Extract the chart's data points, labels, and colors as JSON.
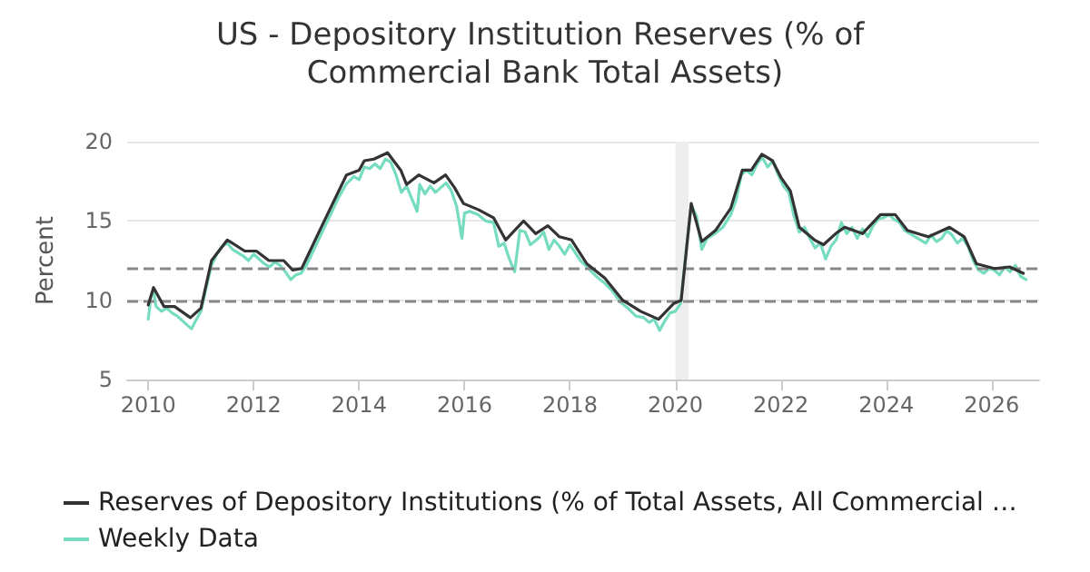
{
  "chart_data": {
    "type": "line",
    "title": "US - Depository Institution Reserves (% of Commercial Bank Total Assets)",
    "ylabel": "Percent",
    "xlim": [
      2009.6,
      2026.9
    ],
    "xticks": [
      2010,
      2012,
      2014,
      2016,
      2018,
      2020,
      2022,
      2024,
      2026
    ],
    "ylim": [
      5,
      20
    ],
    "yticks": [
      5,
      10,
      15,
      20
    ],
    "grid": "y",
    "legend": "bottom",
    "marker": "none",
    "ref_lines": [
      {
        "axis": "y",
        "value": 12,
        "color": "#888888",
        "line_style": "dashed"
      },
      {
        "axis": "y",
        "value": 10,
        "color": "#888888",
        "line_style": "dashed"
      }
    ],
    "bands": [
      {
        "axis": "x",
        "from": 2020.0,
        "to": 2020.25,
        "color": "#eeeeee"
      }
    ],
    "series": [
      {
        "name": "Reserves of Depository Institutions (% of Total Assets, All Commercial …",
        "color": "#333333",
        "x": [
          2010.0,
          2010.1,
          2010.3,
          2010.5,
          2010.8,
          2011.0,
          2011.2,
          2011.5,
          2011.83,
          2012.05,
          2012.29,
          2012.57,
          2012.74,
          2012.91,
          2013.31,
          2013.76,
          2014.0,
          2014.1,
          2014.28,
          2014.54,
          2014.79,
          2014.9,
          2015.13,
          2015.42,
          2015.64,
          2015.81,
          2015.98,
          2016.27,
          2016.55,
          2016.78,
          2017.12,
          2017.35,
          2017.58,
          2017.8,
          2018.03,
          2018.32,
          2018.66,
          2019.0,
          2019.34,
          2019.68,
          2019.97,
          2020.11,
          2020.3,
          2020.5,
          2020.76,
          2021.05,
          2021.27,
          2021.44,
          2021.64,
          2021.84,
          2022.01,
          2022.18,
          2022.35,
          2022.64,
          2022.81,
          2023.04,
          2023.21,
          2023.55,
          2023.89,
          2024.17,
          2024.4,
          2024.8,
          2025.2,
          2025.48,
          2025.71,
          2026.05,
          2026.34,
          2026.6
        ],
        "values": [
          9.7,
          10.8,
          9.6,
          9.6,
          8.9,
          9.5,
          12.5,
          13.8,
          13.1,
          13.1,
          12.5,
          12.5,
          11.9,
          12.0,
          14.8,
          17.9,
          18.2,
          18.8,
          18.9,
          19.3,
          18.2,
          17.3,
          17.9,
          17.4,
          17.9,
          17.1,
          16.1,
          15.7,
          15.2,
          13.8,
          15.0,
          14.2,
          14.7,
          14.0,
          13.8,
          12.3,
          11.4,
          10.0,
          9.3,
          8.8,
          9.8,
          10.0,
          16.1,
          13.7,
          14.4,
          15.8,
          18.2,
          18.2,
          19.2,
          18.8,
          17.7,
          16.9,
          14.6,
          13.8,
          13.5,
          14.2,
          14.6,
          14.2,
          15.4,
          15.4,
          14.4,
          14.0,
          14.6,
          14.0,
          12.3,
          12.0,
          12.1,
          11.7
        ]
      },
      {
        "name": "Weekly Data",
        "color": "#76dcc0",
        "x": [
          2010.0,
          2010.05,
          2010.1,
          2010.15,
          2010.25,
          2010.35,
          2010.45,
          2010.55,
          2010.65,
          2010.75,
          2010.82,
          2010.9,
          2011.0,
          2011.1,
          2011.2,
          2011.3,
          2011.4,
          2011.5,
          2011.6,
          2011.7,
          2011.8,
          2011.9,
          2012.0,
          2012.1,
          2012.2,
          2012.3,
          2012.4,
          2012.5,
          2012.6,
          2012.7,
          2012.8,
          2012.9,
          2013.0,
          2013.2,
          2013.4,
          2013.6,
          2013.75,
          2013.9,
          2014.0,
          2014.1,
          2014.2,
          2014.3,
          2014.4,
          2014.5,
          2014.6,
          2014.7,
          2014.8,
          2014.9,
          2015.0,
          2015.1,
          2015.15,
          2015.25,
          2015.35,
          2015.45,
          2015.55,
          2015.65,
          2015.75,
          2015.85,
          2015.95,
          2016.0,
          2016.1,
          2016.25,
          2016.4,
          2016.55,
          2016.65,
          2016.75,
          2016.85,
          2016.95,
          2017.05,
          2017.15,
          2017.25,
          2017.4,
          2017.5,
          2017.6,
          2017.7,
          2017.8,
          2017.9,
          2018.0,
          2018.1,
          2018.2,
          2018.35,
          2018.5,
          2018.65,
          2018.8,
          2018.95,
          2019.1,
          2019.25,
          2019.4,
          2019.5,
          2019.6,
          2019.7,
          2019.8,
          2019.9,
          2020.0,
          2020.1,
          2020.2,
          2020.3,
          2020.4,
          2020.5,
          2020.6,
          2020.75,
          2020.9,
          2021.05,
          2021.15,
          2021.25,
          2021.35,
          2021.45,
          2021.55,
          2021.65,
          2021.75,
          2021.85,
          2021.95,
          2022.05,
          2022.15,
          2022.25,
          2022.35,
          2022.45,
          2022.55,
          2022.65,
          2022.75,
          2022.85,
          2022.95,
          2023.05,
          2023.15,
          2023.25,
          2023.35,
          2023.45,
          2023.55,
          2023.65,
          2023.75,
          2023.85,
          2023.95,
          2024.05,
          2024.15,
          2024.25,
          2024.35,
          2024.45,
          2024.55,
          2024.65,
          2024.75,
          2024.85,
          2024.95,
          2025.05,
          2025.15,
          2025.25,
          2025.35,
          2025.45,
          2025.55,
          2025.65,
          2025.75,
          2025.85,
          2025.95,
          2026.05,
          2026.15,
          2026.25,
          2026.35,
          2026.45,
          2026.55,
          2026.65
        ],
        "values": [
          8.8,
          10.2,
          10.6,
          9.6,
          9.3,
          9.5,
          9.2,
          9.0,
          8.7,
          8.4,
          8.2,
          8.7,
          9.3,
          10.8,
          12.2,
          12.9,
          13.4,
          13.6,
          13.2,
          13.0,
          12.8,
          12.5,
          12.9,
          12.6,
          12.3,
          12.1,
          12.4,
          12.2,
          11.8,
          11.3,
          11.6,
          11.7,
          12.2,
          13.6,
          15.0,
          16.4,
          17.3,
          17.8,
          17.6,
          18.4,
          18.3,
          18.6,
          18.3,
          18.9,
          18.7,
          17.9,
          16.8,
          17.2,
          16.4,
          15.6,
          17.3,
          16.7,
          17.2,
          16.8,
          17.1,
          17.4,
          16.9,
          15.9,
          13.9,
          15.5,
          15.6,
          15.4,
          15.0,
          14.9,
          13.4,
          13.6,
          12.6,
          11.8,
          14.4,
          14.3,
          13.5,
          13.9,
          14.3,
          13.2,
          13.8,
          13.4,
          12.9,
          13.5,
          13.0,
          12.5,
          12.0,
          11.5,
          11.1,
          10.6,
          9.9,
          9.5,
          9.0,
          8.9,
          8.6,
          8.8,
          8.1,
          8.7,
          9.2,
          9.3,
          9.8,
          13.0,
          16.0,
          15.3,
          13.2,
          13.9,
          14.2,
          14.6,
          15.4,
          16.3,
          17.9,
          18.2,
          17.9,
          18.6,
          19.0,
          18.4,
          18.8,
          17.9,
          17.2,
          16.8,
          15.3,
          14.3,
          14.6,
          13.9,
          13.3,
          13.6,
          12.6,
          13.4,
          13.8,
          14.9,
          14.2,
          14.6,
          13.9,
          14.5,
          14.0,
          14.7,
          15.1,
          15.2,
          15.4,
          15.1,
          14.9,
          14.4,
          14.2,
          14.0,
          13.8,
          13.6,
          14.1,
          13.7,
          13.9,
          14.4,
          14.1,
          13.6,
          13.9,
          13.4,
          12.5,
          11.9,
          11.7,
          12.0,
          11.9,
          11.6,
          12.1,
          11.8,
          12.2,
          11.5,
          11.3
        ]
      }
    ]
  }
}
